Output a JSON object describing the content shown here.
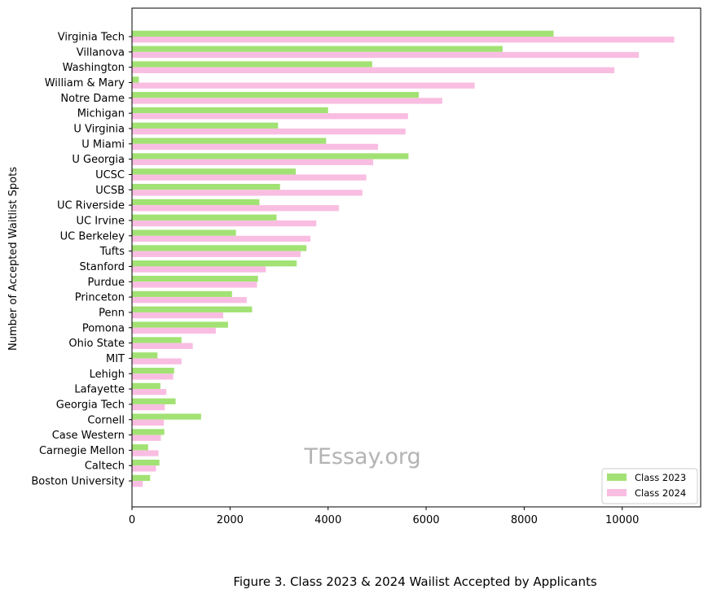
{
  "chart_data": {
    "type": "bar",
    "orientation": "horizontal",
    "ylabel": "Number of Accepted Waitlist Spots",
    "xlabel": "",
    "xlim": [
      0,
      11600
    ],
    "xticks": [
      0,
      2000,
      4000,
      6000,
      8000,
      10000
    ],
    "grid": false,
    "legend": "bottom-right",
    "watermark": "TEssay.org",
    "categories": [
      "Virginia Tech",
      "Villanova",
      "Washington",
      "William & Mary",
      "Notre Dame",
      "Michigan",
      "U Virginia",
      "U Miami",
      "U Georgia",
      "UCSC",
      "UCSB",
      "UC Riverside",
      "UC Irvine",
      "UC Berkeley",
      "Tufts",
      "Stanford",
      "Purdue",
      "Princeton",
      "Penn ",
      "Pomona",
      "Ohio State",
      "MIT",
      "Lehigh",
      "Lafayette",
      "Georgia Tech",
      "Cornell",
      "Case Western",
      "Carnegie Mellon",
      "Caltech",
      "Boston University"
    ],
    "series": [
      {
        "name": "Class 2023",
        "color": "#a2e274",
        "values": [
          8600,
          7560,
          4900,
          140,
          5850,
          4000,
          2980,
          3960,
          5640,
          3340,
          3020,
          2600,
          2950,
          2120,
          3560,
          3360,
          2570,
          2040,
          2450,
          1960,
          1010,
          520,
          860,
          580,
          890,
          1410,
          660,
          330,
          560,
          370
        ]
      },
      {
        "name": "Class 2024",
        "color": "#f9bde2",
        "values": [
          11060,
          10340,
          9840,
          6990,
          6330,
          5630,
          5580,
          5020,
          4920,
          4780,
          4700,
          4220,
          3760,
          3640,
          3440,
          2730,
          2550,
          2340,
          1860,
          1710,
          1240,
          1010,
          840,
          700,
          670,
          650,
          590,
          540,
          490,
          220
        ]
      }
    ]
  },
  "caption": "Figure 3. Class 2023 & 2024 Wailist Accepted by Applicants"
}
